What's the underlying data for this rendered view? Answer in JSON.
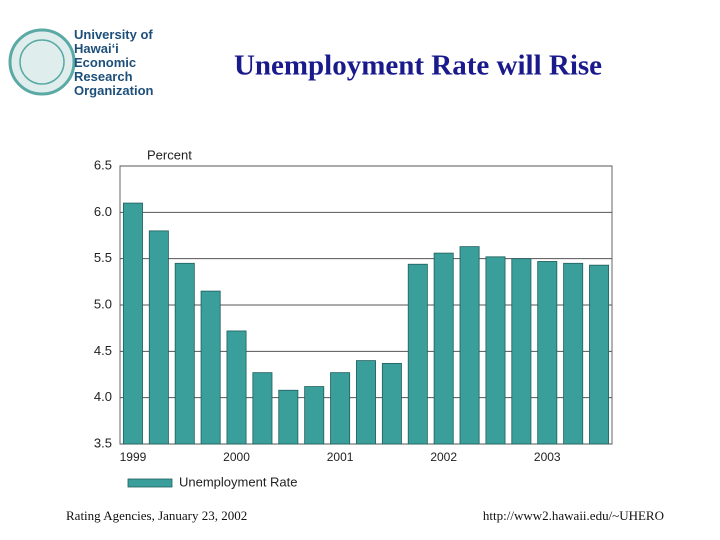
{
  "header": {
    "logo_lines": [
      "University of",
      "Hawai‘i",
      "Economic",
      "Research",
      "Organization"
    ],
    "title": "Unemployment Rate will Rise"
  },
  "chart_data": {
    "type": "bar",
    "y_axis_label": "Percent",
    "categories": [
      "1999",
      null,
      null,
      null,
      "2000",
      null,
      null,
      null,
      "2001",
      null,
      null,
      null,
      "2002",
      null,
      null,
      null,
      "2003",
      null,
      null
    ],
    "series": [
      {
        "name": "Unemployment Rate",
        "color": "#3a9e9a",
        "values": [
          6.1,
          5.8,
          5.45,
          5.15,
          4.72,
          4.27,
          4.08,
          4.12,
          4.27,
          4.4,
          4.37,
          5.44,
          5.56,
          5.63,
          5.52,
          5.5,
          5.47,
          5.45,
          5.43
        ]
      }
    ],
    "ylim": [
      3.5,
      6.5
    ],
    "yticks": [
      3.5,
      {
        "value": 4,
        "label": "4.0"
      },
      4.5,
      {
        "value": 5,
        "label": "5.0"
      },
      5.5,
      {
        "value": 6,
        "label": "6.0"
      },
      6.5
    ],
    "grid": true
  },
  "footer": {
    "left": "Rating Agencies, January 23, 2002",
    "right": "http://www2.hawaii.edu/~UHERO"
  }
}
